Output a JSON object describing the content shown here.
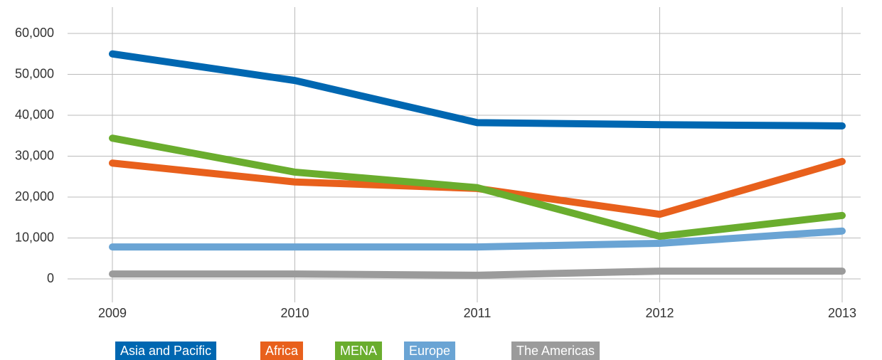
{
  "chart_data": {
    "type": "line",
    "categories": [
      "2009",
      "2010",
      "2011",
      "2012",
      "2013"
    ],
    "series": [
      {
        "name": "Asia and Pacific",
        "color": "#0067b1",
        "values": [
          55000,
          48500,
          38200,
          37700,
          37400
        ]
      },
      {
        "name": "Africa",
        "color": "#e8601c",
        "values": [
          28300,
          23700,
          22100,
          15800,
          28700
        ]
      },
      {
        "name": "MENA",
        "color": "#6aad2e",
        "values": [
          34400,
          26100,
          22300,
          10400,
          15500
        ]
      },
      {
        "name": "Europe",
        "color": "#6aa4d4",
        "values": [
          7800,
          7800,
          7800,
          8700,
          11700
        ]
      },
      {
        "name": "The Americas",
        "color": "#9b9b9b",
        "values": [
          1200,
          1200,
          900,
          1900,
          1900
        ]
      }
    ],
    "ylim": [
      0,
      60000
    ],
    "yticks": [
      0,
      {
        "value": 10000,
        "label": "10,000"
      },
      {
        "value": 20000,
        "label": "20,000"
      },
      {
        "value": 30000,
        "label": "30,000"
      },
      {
        "value": 40000,
        "label": "40,000"
      },
      {
        "value": 50000,
        "label": "50,000"
      },
      {
        "value": 60000,
        "label": "60,000"
      }
    ],
    "grid": true
  }
}
